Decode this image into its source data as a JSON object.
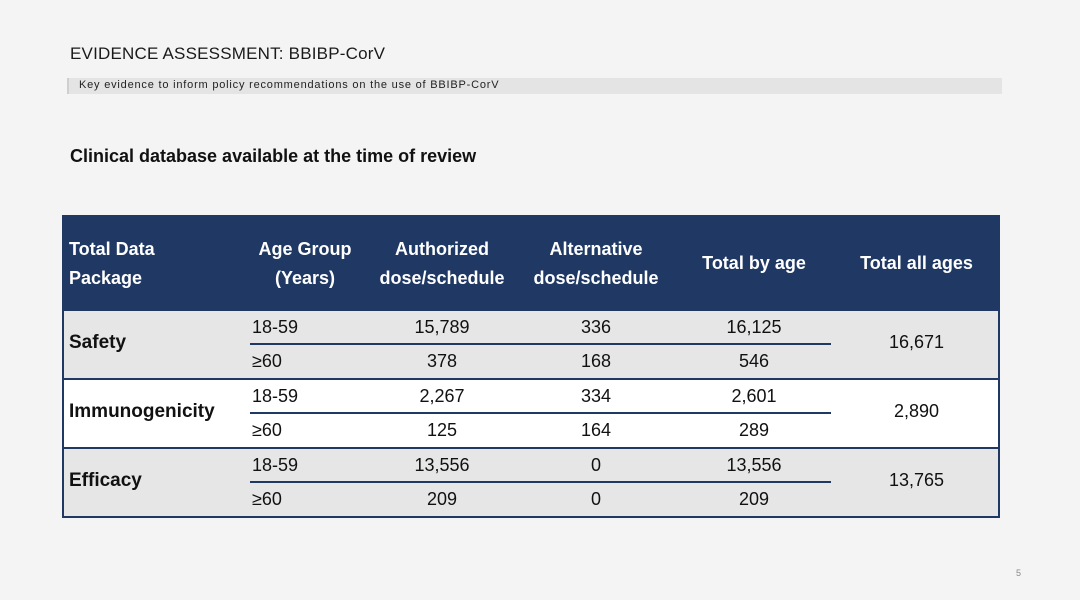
{
  "header": {
    "title": "EVIDENCE ASSESSMENT: BBIBP-CorV",
    "subtitle": "Key evidence to inform policy recommendations on the use of BBIBP-CorV"
  },
  "section_heading": "Clinical database available at the time of review",
  "table": {
    "headers": {
      "package_line1": "Total Data",
      "package_line2": "Package",
      "age_line1": "Age Group",
      "age_line2": "(Years)",
      "auth_line1": "Authorized",
      "auth_line2": "dose/schedule",
      "alt_line1": "Alternative",
      "alt_line2": "dose/schedule",
      "total_by_age": "Total by age",
      "total_all_ages": "Total all ages"
    },
    "groups": [
      {
        "name": "Safety",
        "total_all": "16,671",
        "rows": [
          {
            "age": "18-59",
            "authorized": "15,789",
            "alternative": "336",
            "total": "16,125"
          },
          {
            "age": "≥60",
            "authorized": "378",
            "alternative": "168",
            "total": "546"
          }
        ]
      },
      {
        "name": "Immunogenicity",
        "total_all": "2,890",
        "rows": [
          {
            "age": "18-59",
            "authorized": "2,267",
            "alternative": "334",
            "total": "2,601"
          },
          {
            "age": "≥60",
            "authorized": "125",
            "alternative": "164",
            "total": "289"
          }
        ]
      },
      {
        "name": "Efficacy",
        "total_all": "13,765",
        "rows": [
          {
            "age": "18-59",
            "authorized": "13,556",
            "alternative": "0",
            "total": "13,556"
          },
          {
            "age": "≥60",
            "authorized": "209",
            "alternative": "0",
            "total": "209"
          }
        ]
      }
    ]
  },
  "page_number": "5",
  "colors": {
    "header_navy": "#1f3864",
    "shaded_row": "#e6e6e6",
    "background": "#f4f4f4"
  }
}
